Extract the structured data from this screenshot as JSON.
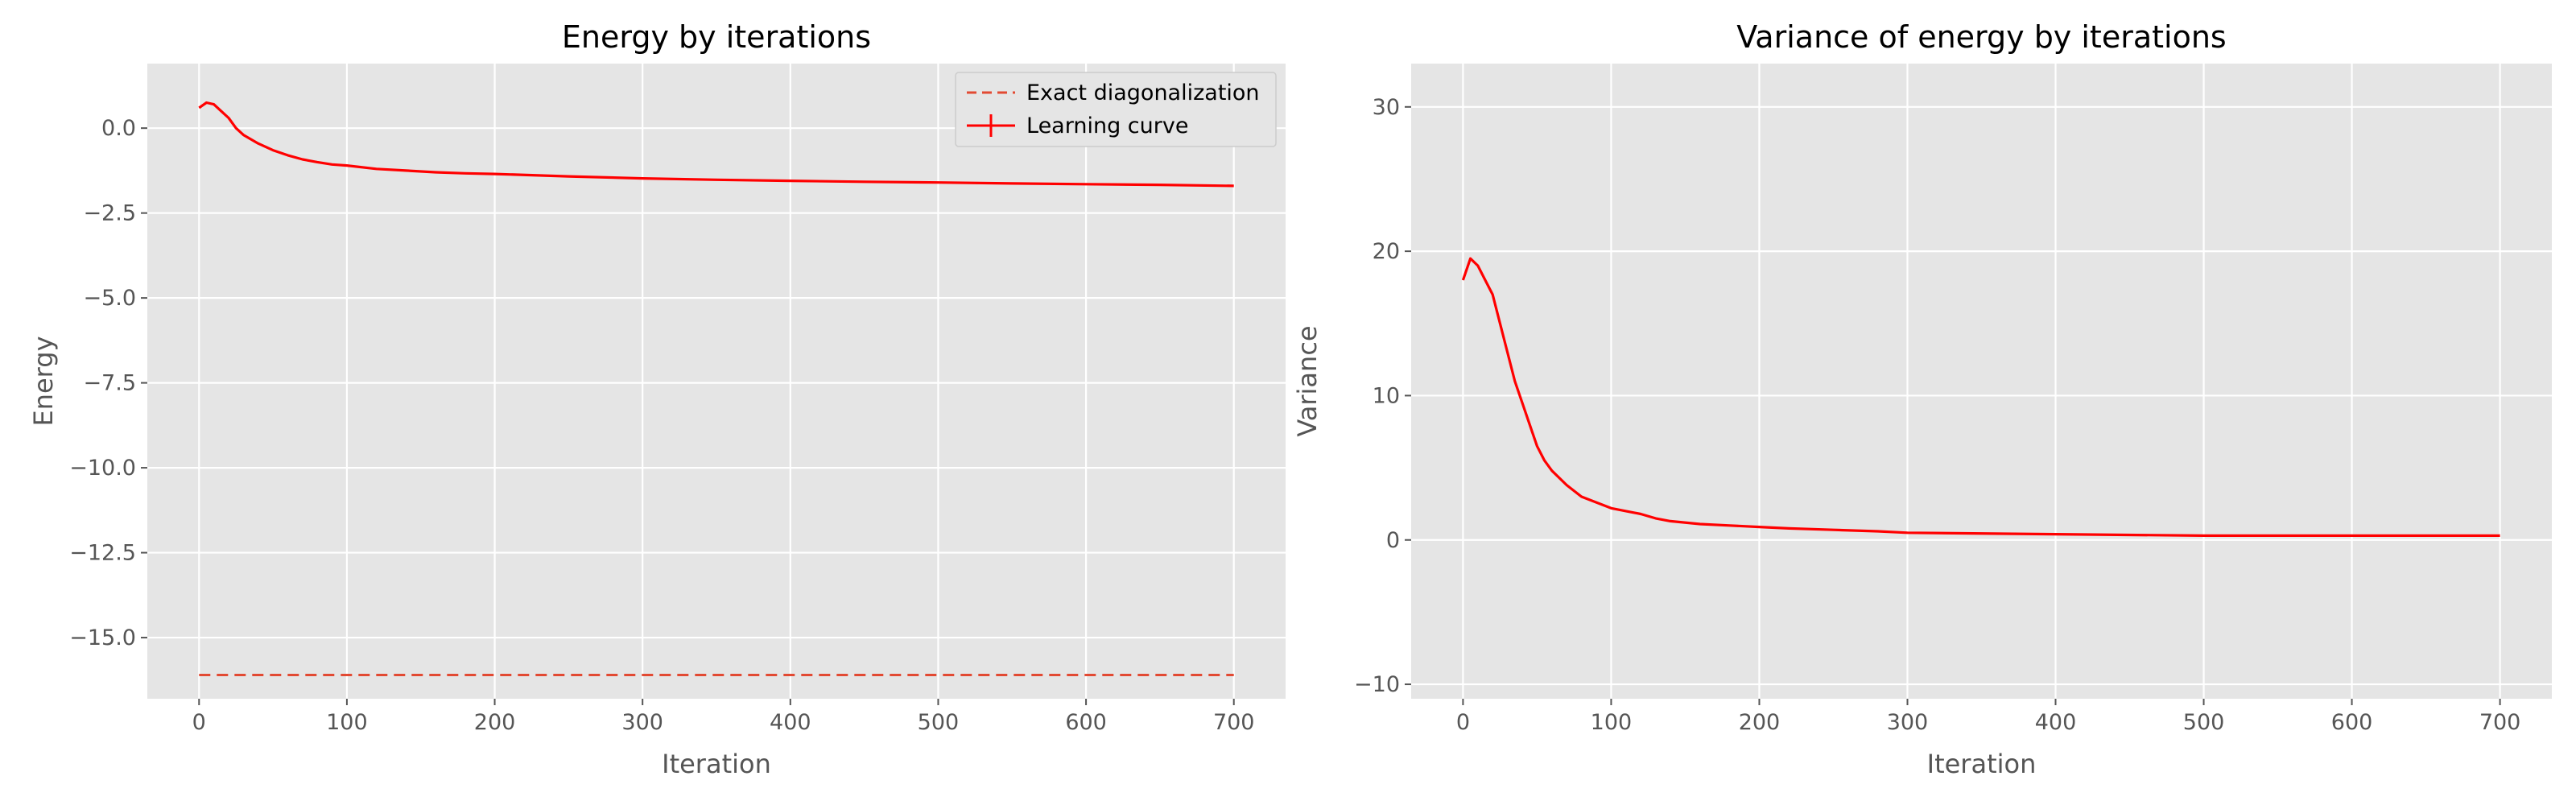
{
  "chart_data": [
    {
      "type": "line",
      "title": "Energy by iterations",
      "xlabel": "Iteration",
      "ylabel": "Energy",
      "xlim": [
        -35,
        735
      ],
      "ylim": [
        -16.8,
        1.9
      ],
      "xticks": [
        0,
        100,
        200,
        300,
        400,
        500,
        600,
        700
      ],
      "xtick_labels": [
        "0",
        "100",
        "200",
        "300",
        "400",
        "500",
        "600",
        "700"
      ],
      "yticks": [
        0.0,
        -2.5,
        -5.0,
        -7.5,
        -10.0,
        -12.5,
        -15.0
      ],
      "ytick_labels": [
        "0.0",
        "−2.5",
        "−5.0",
        "−7.5",
        "−10.0",
        "−12.5",
        "−15.0"
      ],
      "grid": true,
      "legend_position": "top-right",
      "series": [
        {
          "name": "Exact diagonalization",
          "style": "dashed",
          "color": "#e24a33",
          "x": [
            0,
            700
          ],
          "y": [
            -16.1,
            -16.1
          ]
        },
        {
          "name": "Learning curve",
          "style": "solid-with-errorbars",
          "color": "#ff0000",
          "x": [
            0,
            5,
            10,
            15,
            20,
            25,
            30,
            40,
            50,
            60,
            70,
            80,
            90,
            100,
            120,
            140,
            160,
            180,
            200,
            250,
            300,
            350,
            400,
            450,
            500,
            550,
            600,
            650,
            700
          ],
          "y": [
            0.6,
            0.75,
            0.7,
            0.5,
            0.3,
            0.0,
            -0.2,
            -0.45,
            -0.65,
            -0.8,
            -0.92,
            -1.0,
            -1.07,
            -1.1,
            -1.2,
            -1.25,
            -1.3,
            -1.33,
            -1.35,
            -1.42,
            -1.48,
            -1.52,
            -1.55,
            -1.58,
            -1.6,
            -1.63,
            -1.65,
            -1.67,
            -1.7
          ]
        }
      ]
    },
    {
      "type": "line",
      "title": "Variance of energy by iterations",
      "xlabel": "Iteration",
      "ylabel": "Variance",
      "xlim": [
        -35,
        735
      ],
      "ylim": [
        -11,
        33
      ],
      "xticks": [
        0,
        100,
        200,
        300,
        400,
        500,
        600,
        700
      ],
      "xtick_labels": [
        "0",
        "100",
        "200",
        "300",
        "400",
        "500",
        "600",
        "700"
      ],
      "yticks": [
        30,
        20,
        10,
        0,
        -10
      ],
      "ytick_labels": [
        "30",
        "20",
        "10",
        "0",
        "−10"
      ],
      "grid": true,
      "series": [
        {
          "color": "#ff0000",
          "x": [
            0,
            5,
            10,
            15,
            20,
            25,
            30,
            35,
            40,
            45,
            50,
            55,
            60,
            70,
            80,
            90,
            100,
            110,
            120,
            130,
            140,
            160,
            180,
            200,
            220,
            250,
            280,
            300,
            400,
            500,
            600,
            700
          ],
          "y": [
            18.0,
            19.5,
            19.0,
            18.0,
            17.0,
            15.0,
            13.0,
            11.0,
            9.5,
            8.0,
            6.5,
            5.5,
            4.8,
            3.8,
            3.0,
            2.6,
            2.2,
            2.0,
            1.8,
            1.5,
            1.3,
            1.1,
            1.0,
            0.9,
            0.8,
            0.7,
            0.6,
            0.5,
            0.4,
            0.3,
            0.3,
            0.3
          ]
        }
      ]
    }
  ]
}
